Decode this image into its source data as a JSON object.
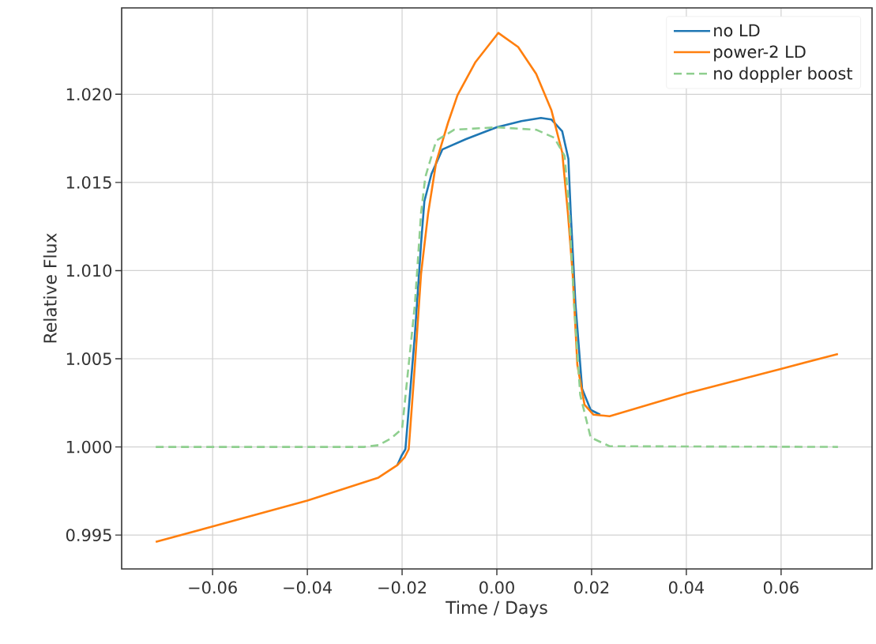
{
  "chart_data": {
    "type": "line",
    "xlabel": "Time / Days",
    "ylabel": "Relative Flux",
    "xlim": [
      -0.0792,
      0.0792
    ],
    "ylim": [
      0.99308,
      1.0249
    ],
    "xticks": [
      {
        "value": -0.06,
        "label": "−0.06"
      },
      {
        "value": -0.04,
        "label": "−0.04"
      },
      {
        "value": -0.02,
        "label": "−0.02"
      },
      {
        "value": 0,
        "label": "0.00"
      },
      {
        "value": 0.02,
        "label": "0.02"
      },
      {
        "value": 0.04,
        "label": "0.04"
      },
      {
        "value": 0.06,
        "label": "0.06"
      }
    ],
    "yticks": [
      {
        "value": 0.995,
        "label": "0.995"
      },
      {
        "value": 1.0,
        "label": "1.000"
      },
      {
        "value": 1.005,
        "label": "1.005"
      },
      {
        "value": 1.01,
        "label": "1.010"
      },
      {
        "value": 1.015,
        "label": "1.015"
      },
      {
        "value": 1.02,
        "label": "1.020"
      }
    ],
    "grid": true,
    "legend": "top right",
    "series": [
      {
        "name": "no LD",
        "color": "#1f77b4",
        "x": [
          -0.021,
          -0.0201,
          -0.0193,
          -0.0173,
          -0.016,
          -0.0153,
          -0.0138,
          -0.0115,
          -0.0065,
          0.0,
          0.0052,
          0.0093,
          0.0115,
          0.0138,
          0.0151,
          0.0156,
          0.0166,
          0.018,
          0.0198,
          0.0218
        ],
        "values": [
          0.99897,
          0.99951,
          0.99987,
          1.00638,
          1.01152,
          1.01393,
          1.01549,
          1.01687,
          1.01746,
          1.01813,
          1.01848,
          1.01866,
          1.01857,
          1.0179,
          1.01634,
          1.01326,
          1.00808,
          1.0033,
          1.0021,
          1.00183
        ]
      },
      {
        "name": "power-2 LD",
        "color": "#ff7f0e",
        "x": [
          -0.072,
          -0.06,
          -0.04,
          -0.025,
          -0.021,
          -0.0195,
          -0.0186,
          -0.0173,
          -0.016,
          -0.0145,
          -0.0128,
          -0.0103,
          -0.0083,
          -0.0045,
          0.0003,
          0.0045,
          0.0083,
          0.0115,
          0.0138,
          0.015,
          0.016,
          0.017,
          0.0185,
          0.0204,
          0.0238,
          0.0401,
          0.0599,
          0.072
        ],
        "values": [
          0.99461,
          0.99549,
          0.99696,
          0.99826,
          0.99897,
          0.9994,
          0.99987,
          1.00464,
          1.00982,
          1.01326,
          1.01616,
          1.01839,
          1.01995,
          1.02183,
          1.02348,
          1.02268,
          1.02116,
          1.01911,
          1.0167,
          1.01326,
          1.00982,
          1.00464,
          1.0024,
          1.00183,
          1.00174,
          1.00304,
          1.00442,
          1.00527
        ]
      },
      {
        "name": "no doppler boost",
        "color": "#8fcf8f",
        "line_style": "dashed",
        "x": [
          -0.072,
          -0.028,
          -0.025,
          -0.0223,
          -0.02,
          -0.0173,
          -0.016,
          -0.0151,
          -0.0128,
          -0.009,
          0.0,
          0.0083,
          0.0121,
          0.0143,
          0.0153,
          0.0163,
          0.0176,
          0.0198,
          0.0238,
          0.072
        ],
        "values": [
          1.0,
          1.0,
          1.0001,
          1.00049,
          1.00103,
          1.00808,
          1.01326,
          1.01531,
          1.01737,
          1.01799,
          1.01813,
          1.01799,
          1.01754,
          1.01652,
          1.01326,
          1.00808,
          1.00295,
          1.00054,
          1.00004,
          1.0
        ]
      }
    ]
  }
}
